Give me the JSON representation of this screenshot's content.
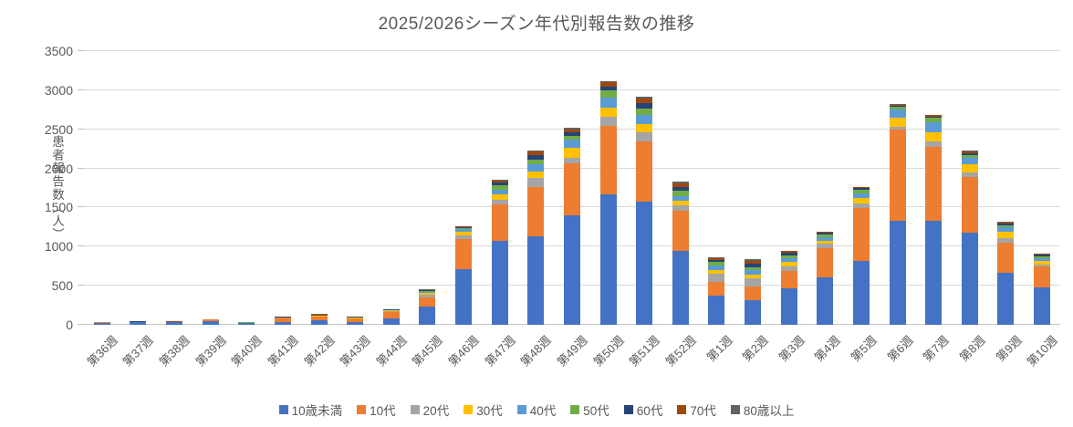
{
  "chart_data": {
    "type": "bar",
    "stacked": true,
    "title": "2025/2026シーズン年代別報告数の推移",
    "xlabel": "",
    "ylabel": "患者報告数（人）",
    "ylim": [
      0,
      3500
    ],
    "ytick_interval": 500,
    "grid": "horizontal",
    "legend_position": "bottom",
    "categories": [
      "第36週",
      "第37週",
      "第38週",
      "第39週",
      "第40週",
      "第41週",
      "第42週",
      "第43週",
      "第44週",
      "第45週",
      "第46週",
      "第47週",
      "第48週",
      "第49週",
      "第50週",
      "第51週",
      "第52週",
      "第1週",
      "第2週",
      "第3週",
      "第4週",
      "第5週",
      "第6週",
      "第7週",
      "第8週",
      "第9週",
      "第10週"
    ],
    "series": [
      {
        "name": "10歳未満",
        "color": "#4472C4",
        "values": [
          25,
          30,
          30,
          45,
          20,
          35,
          60,
          40,
          85,
          230,
          715,
          1075,
          1135,
          1405,
          1670,
          1580,
          940,
          375,
          310,
          470,
          605,
          820,
          1330,
          1335,
          1180,
          665,
          480
        ]
      },
      {
        "name": "10代",
        "color": "#ED7D31",
        "values": [
          5,
          10,
          10,
          20,
          5,
          55,
          45,
          45,
          80,
          120,
          385,
          460,
          630,
          655,
          870,
          770,
          520,
          170,
          185,
          215,
          380,
          670,
          1170,
          935,
          710,
          390,
          270
        ]
      },
      {
        "name": "20代",
        "color": "#A5A5A5",
        "values": [
          0,
          0,
          0,
          0,
          0,
          0,
          0,
          0,
          10,
          30,
          45,
          65,
          110,
          80,
          115,
          110,
          65,
          105,
          100,
          65,
          50,
          60,
          30,
          80,
          60,
          55,
          25
        ]
      },
      {
        "name": "30代",
        "color": "#FFC000",
        "values": [
          0,
          0,
          0,
          0,
          0,
          0,
          10,
          10,
          10,
          25,
          40,
          70,
          85,
          120,
          125,
          105,
          60,
          50,
          50,
          50,
          40,
          70,
          115,
          115,
          100,
          75,
          40
        ]
      },
      {
        "name": "40代",
        "color": "#5B9BD5",
        "values": [
          0,
          0,
          0,
          0,
          0,
          0,
          0,
          0,
          0,
          20,
          35,
          60,
          90,
          105,
          125,
          115,
          65,
          55,
          50,
          50,
          50,
          65,
          105,
          130,
          80,
          60,
          40
        ]
      },
      {
        "name": "50代",
        "color": "#70AD47",
        "values": [
          0,
          0,
          0,
          0,
          10,
          0,
          0,
          0,
          0,
          5,
          15,
          55,
          65,
          45,
          95,
          90,
          65,
          45,
          45,
          40,
          35,
          40,
          40,
          50,
          40,
          30,
          25
        ]
      },
      {
        "name": "60代",
        "color": "#264478",
        "values": [
          0,
          10,
          0,
          10,
          0,
          15,
          0,
          15,
          15,
          10,
          15,
          35,
          50,
          50,
          50,
          65,
          50,
          25,
          40,
          30,
          15,
          20,
          15,
          20,
          25,
          25,
          15
        ]
      },
      {
        "name": "70代",
        "color": "#9E480E",
        "values": [
          0,
          0,
          10,
          0,
          0,
          0,
          15,
          0,
          0,
          10,
          10,
          25,
          50,
          40,
          55,
          60,
          40,
          30,
          40,
          20,
          10,
          15,
          10,
          15,
          25,
          10,
          10
        ]
      },
      {
        "name": "80歳以上",
        "color": "#636363",
        "values": [
          0,
          0,
          0,
          0,
          0,
          0,
          5,
          0,
          0,
          5,
          5,
          10,
          15,
          15,
          15,
          20,
          25,
          10,
          20,
          10,
          5,
          5,
          5,
          5,
          10,
          5,
          5
        ]
      }
    ]
  }
}
